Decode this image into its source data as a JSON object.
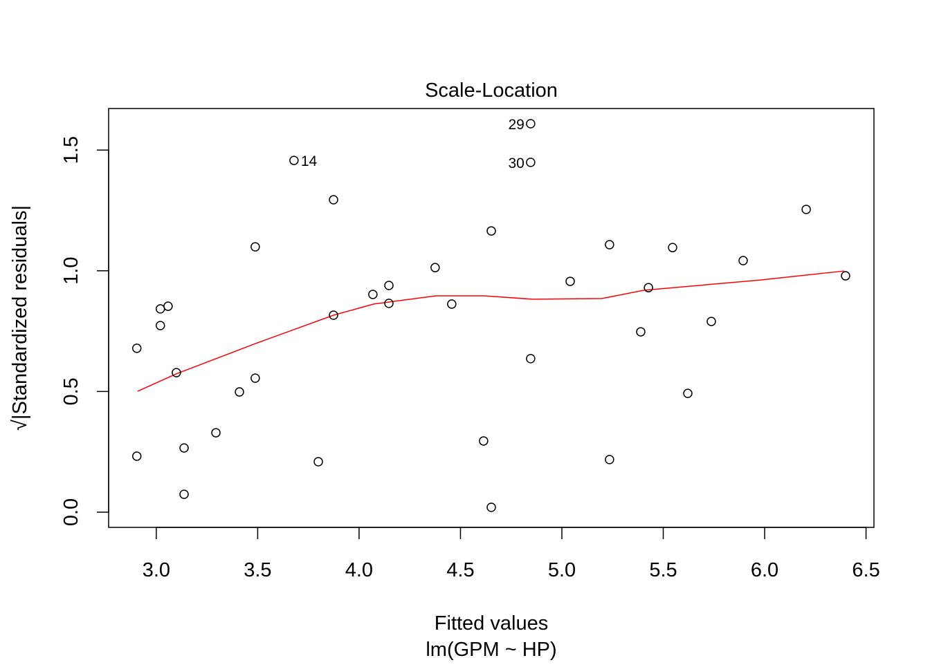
{
  "chart_data": {
    "type": "scatter",
    "title": "Scale-Location",
    "xlabel": "Fitted values",
    "subtitle": "lm(GPM ~ HP)",
    "ylabel": "√|Standardized residuals|",
    "xlim": [
      2.765,
      6.539
    ],
    "ylim": [
      -0.063,
      1.672
    ],
    "xticks": [
      "3.0",
      "3.5",
      "4.0",
      "4.5",
      "5.0",
      "5.5",
      "6.0",
      "6.5"
    ],
    "yticks": [
      "0.0",
      "0.5",
      "1.0",
      "1.5"
    ],
    "grid": false,
    "point_color": "#000000",
    "smooth_color": "#ff0000",
    "points": [
      {
        "x": 2.904,
        "y": 0.679
      },
      {
        "x": 2.904,
        "y": 0.232
      },
      {
        "x": 3.02,
        "y": 0.842
      },
      {
        "x": 3.058,
        "y": 0.853
      },
      {
        "x": 3.02,
        "y": 0.773
      },
      {
        "x": 3.099,
        "y": 0.578
      },
      {
        "x": 3.137,
        "y": 0.266
      },
      {
        "x": 3.137,
        "y": 0.074
      },
      {
        "x": 3.294,
        "y": 0.329
      },
      {
        "x": 3.41,
        "y": 0.498
      },
      {
        "x": 3.488,
        "y": 1.099
      },
      {
        "x": 3.488,
        "y": 0.555
      },
      {
        "x": 3.679,
        "y": 1.457,
        "label": "14"
      },
      {
        "x": 3.799,
        "y": 0.209
      },
      {
        "x": 3.874,
        "y": 1.294
      },
      {
        "x": 3.874,
        "y": 0.816
      },
      {
        "x": 4.068,
        "y": 0.902
      },
      {
        "x": 4.147,
        "y": 0.939
      },
      {
        "x": 4.147,
        "y": 0.865
      },
      {
        "x": 4.375,
        "y": 1.013
      },
      {
        "x": 4.457,
        "y": 0.862
      },
      {
        "x": 4.614,
        "y": 0.295
      },
      {
        "x": 4.652,
        "y": 1.165
      },
      {
        "x": 4.652,
        "y": 0.02
      },
      {
        "x": 4.846,
        "y": 1.609,
        "label": "29"
      },
      {
        "x": 4.846,
        "y": 1.449,
        "label": "30"
      },
      {
        "x": 4.846,
        "y": 0.636
      },
      {
        "x": 5.041,
        "y": 0.956
      },
      {
        "x": 5.235,
        "y": 1.108
      },
      {
        "x": 5.235,
        "y": 0.218
      },
      {
        "x": 5.389,
        "y": 0.747
      },
      {
        "x": 5.427,
        "y": 0.93
      },
      {
        "x": 5.546,
        "y": 1.096
      },
      {
        "x": 5.621,
        "y": 0.492
      },
      {
        "x": 5.737,
        "y": 0.79
      },
      {
        "x": 5.894,
        "y": 1.042
      },
      {
        "x": 6.205,
        "y": 1.254
      },
      {
        "x": 6.399,
        "y": 0.979
      }
    ],
    "smooth": [
      {
        "x": 2.908,
        "y": 0.501
      },
      {
        "x": 3.099,
        "y": 0.573
      },
      {
        "x": 3.491,
        "y": 0.699
      },
      {
        "x": 3.874,
        "y": 0.816
      },
      {
        "x": 4.072,
        "y": 0.862
      },
      {
        "x": 4.379,
        "y": 0.896
      },
      {
        "x": 4.618,
        "y": 0.896
      },
      {
        "x": 4.857,
        "y": 0.882
      },
      {
        "x": 5.198,
        "y": 0.885
      },
      {
        "x": 5.403,
        "y": 0.919
      },
      {
        "x": 5.983,
        "y": 0.962
      },
      {
        "x": 6.392,
        "y": 0.999
      }
    ]
  }
}
